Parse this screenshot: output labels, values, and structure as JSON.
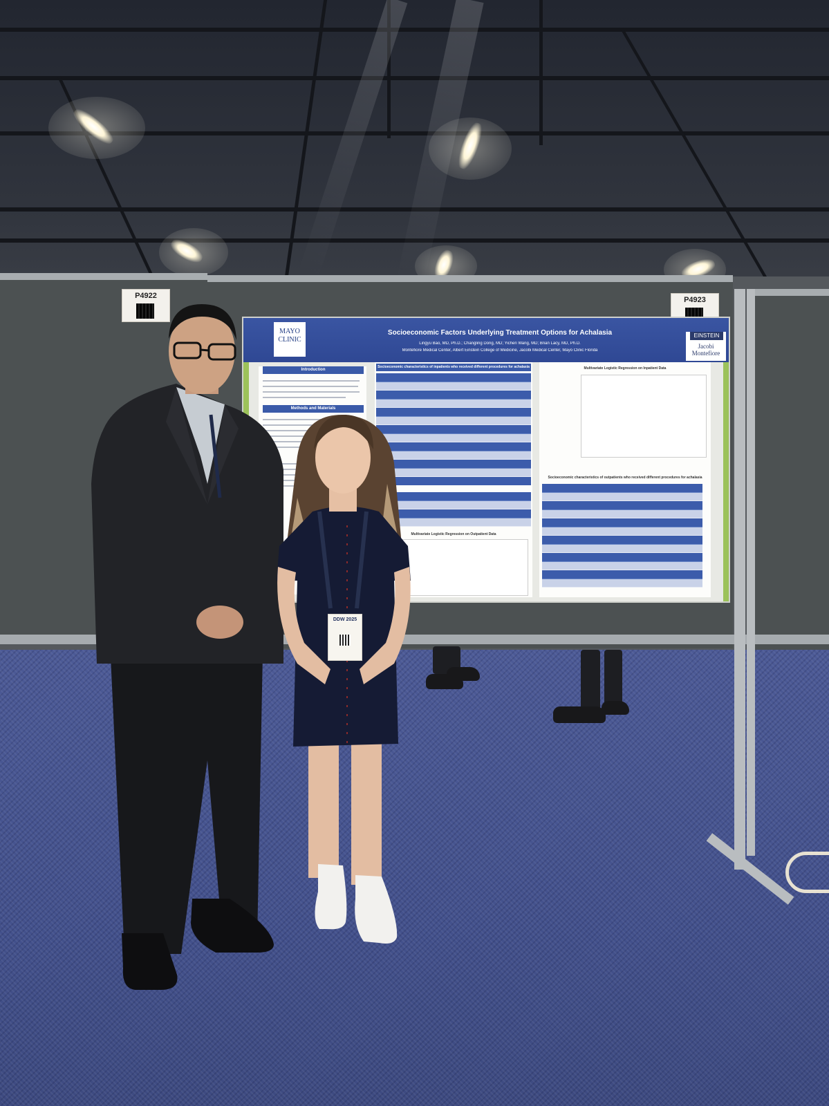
{
  "booth_tags": [
    {
      "number": "P4922"
    },
    {
      "number": "P4923"
    }
  ],
  "poster": {
    "title": "Socioeconomic Factors Underlying Treatment Options for Achalasia",
    "authors": "Lingyu Bao, MD, Ph.D.; Changling Dong, MD; Yichen Wang, MD; Brian Lacy, MD, Ph.D.",
    "affiliations": "Montefiore Medical Center, Albert Einstein College of Medicine, Jacobi Medical Center, Mayo Clinic Florida",
    "logo_left": "MAYO CLINIC",
    "logo_right_top": "EINSTEIN",
    "logo_right_bottom": "Jacobi Montefiore",
    "sections": {
      "intro": "Introduction",
      "methods": "Methods and Materials",
      "table1": "Socioeconomic characteristics of inpatients who received different procedures for achalasia",
      "regression_in": "Multivariate Logistic Regression on Inpatient Data",
      "regression_out": "Multivariate Logistic Regression on Outpatient Data",
      "table2": "Socioeconomic characteristics of outpatients who received different procedures for achalasia"
    }
  },
  "badge": {
    "event": "DDW 2025"
  },
  "colors": {
    "poster_header": "#3052a0",
    "accent_green": "#9cc25a",
    "carpet": "#46548e",
    "panel": "#4c5152"
  }
}
